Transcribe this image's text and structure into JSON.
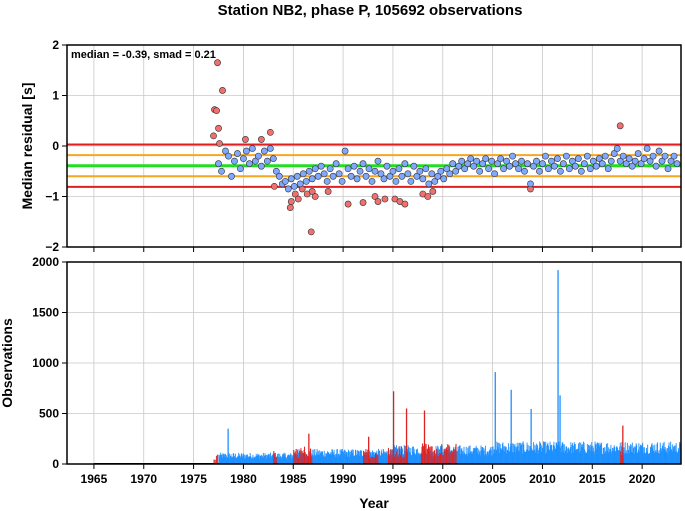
{
  "title": "Station NB2, phase P, 105692 observations",
  "annotation": "median = -0.39, smad = 0.21",
  "colors": {
    "red_line": "#e02020",
    "orange_line": "#f5a623",
    "green_line": "#22dd22",
    "blue_point": "#7fa8ff",
    "red_point": "#f07070",
    "obs_blue": "#1e90ff",
    "obs_red": "#dd2222",
    "grid": "#c8c8c8"
  },
  "chart_data": [
    {
      "type": "scatter",
      "name": "median-residual",
      "ylabel": "Median residual [s]",
      "xlabel": "",
      "xlim": [
        1962.3,
        2023.9
      ],
      "ylim": [
        -2,
        2
      ],
      "yticks": [
        2,
        1,
        0,
        -1,
        -2
      ],
      "xticks": [
        1965,
        1970,
        1975,
        1980,
        1985,
        1990,
        1995,
        2000,
        2005,
        2010,
        2015,
        2020
      ],
      "grid": true,
      "hlines": [
        {
          "y": 0.03,
          "color": "red"
        },
        {
          "y": -0.81,
          "color": "red"
        },
        {
          "y": -0.18,
          "color": "orange"
        },
        {
          "y": -0.6,
          "color": "orange"
        },
        {
          "y": -0.39,
          "color": "green"
        }
      ],
      "median": -0.39,
      "smad": 0.21,
      "series": [
        {
          "color_key": "red_point",
          "points": [
            [
              1977.1,
              0.72
            ],
            [
              1977.3,
              0.7
            ],
            [
              1977.4,
              1.65
            ],
            [
              1977.0,
              0.2
            ],
            [
              1977.5,
              0.35
            ],
            [
              1977.9,
              1.1
            ],
            [
              1977.6,
              0.05
            ],
            [
              1980.2,
              0.13
            ],
            [
              1981.8,
              0.13
            ],
            [
              1982.7,
              0.27
            ],
            [
              1983.1,
              -0.8
            ],
            [
              1984.7,
              -1.22
            ],
            [
              1984.8,
              -1.1
            ],
            [
              1985.2,
              -0.95
            ],
            [
              1985.5,
              -1.05
            ],
            [
              1985.9,
              -0.85
            ],
            [
              1986.4,
              -0.95
            ],
            [
              1986.8,
              -1.7
            ],
            [
              1986.9,
              -0.9
            ],
            [
              1987.2,
              -1.0
            ],
            [
              1988.5,
              -0.9
            ],
            [
              1990.5,
              -1.15
            ],
            [
              1992.0,
              -1.12
            ],
            [
              1993.2,
              -1.0
            ],
            [
              1993.5,
              -1.1
            ],
            [
              1994.2,
              -1.05
            ],
            [
              1995.2,
              -1.05
            ],
            [
              1995.7,
              -1.1
            ],
            [
              1996.2,
              -1.15
            ],
            [
              1998.0,
              -0.95
            ],
            [
              1998.5,
              -1.0
            ],
            [
              1999.0,
              -0.9
            ],
            [
              2008.8,
              -0.85
            ],
            [
              2017.8,
              0.4
            ]
          ]
        },
        {
          "color_key": "blue_point",
          "points": [
            [
              1977.5,
              -0.35
            ],
            [
              1977.8,
              -0.5
            ],
            [
              1978.2,
              -0.1
            ],
            [
              1978.5,
              -0.2
            ],
            [
              1978.8,
              -0.6
            ],
            [
              1979.1,
              -0.3
            ],
            [
              1979.4,
              -0.15
            ],
            [
              1979.7,
              -0.45
            ],
            [
              1980.0,
              -0.25
            ],
            [
              1980.3,
              -0.1
            ],
            [
              1980.6,
              -0.35
            ],
            [
              1980.9,
              -0.05
            ],
            [
              1981.2,
              -0.3
            ],
            [
              1981.5,
              -0.2
            ],
            [
              1981.8,
              -0.4
            ],
            [
              1982.1,
              -0.1
            ],
            [
              1982.4,
              -0.3
            ],
            [
              1982.7,
              -0.05
            ],
            [
              1983.0,
              -0.25
            ],
            [
              1983.3,
              -0.5
            ],
            [
              1983.6,
              -0.6
            ],
            [
              1983.9,
              -0.75
            ],
            [
              1984.2,
              -0.7
            ],
            [
              1984.5,
              -0.85
            ],
            [
              1984.8,
              -0.65
            ],
            [
              1985.1,
              -0.8
            ],
            [
              1985.4,
              -0.6
            ],
            [
              1985.7,
              -0.75
            ],
            [
              1986.0,
              -0.55
            ],
            [
              1986.3,
              -0.7
            ],
            [
              1986.6,
              -0.5
            ],
            [
              1986.9,
              -0.65
            ],
            [
              1987.2,
              -0.45
            ],
            [
              1987.5,
              -0.6
            ],
            [
              1987.8,
              -0.4
            ],
            [
              1988.1,
              -0.55
            ],
            [
              1988.4,
              -0.7
            ],
            [
              1988.7,
              -0.45
            ],
            [
              1989.0,
              -0.6
            ],
            [
              1989.3,
              -0.35
            ],
            [
              1989.6,
              -0.55
            ],
            [
              1989.9,
              -0.7
            ],
            [
              1990.2,
              -0.1
            ],
            [
              1990.5,
              -0.45
            ],
            [
              1990.8,
              -0.6
            ],
            [
              1991.1,
              -0.4
            ],
            [
              1991.4,
              -0.65
            ],
            [
              1991.7,
              -0.5
            ],
            [
              1992.0,
              -0.35
            ],
            [
              1992.3,
              -0.6
            ],
            [
              1992.6,
              -0.45
            ],
            [
              1992.9,
              -0.7
            ],
            [
              1993.2,
              -0.5
            ],
            [
              1993.5,
              -0.3
            ],
            [
              1993.8,
              -0.55
            ],
            [
              1994.1,
              -0.65
            ],
            [
              1994.4,
              -0.4
            ],
            [
              1994.7,
              -0.6
            ],
            [
              1995.0,
              -0.5
            ],
            [
              1995.3,
              -0.7
            ],
            [
              1995.6,
              -0.45
            ],
            [
              1995.9,
              -0.6
            ],
            [
              1996.2,
              -0.35
            ],
            [
              1996.5,
              -0.55
            ],
            [
              1996.8,
              -0.7
            ],
            [
              1997.1,
              -0.4
            ],
            [
              1997.4,
              -0.6
            ],
            [
              1997.7,
              -0.5
            ],
            [
              1998.0,
              -0.65
            ],
            [
              1998.3,
              -0.45
            ],
            [
              1998.6,
              -0.75
            ],
            [
              1998.9,
              -0.55
            ],
            [
              1999.2,
              -0.7
            ],
            [
              1999.5,
              -0.6
            ],
            [
              1999.8,
              -0.5
            ],
            [
              2000.1,
              -0.65
            ],
            [
              2000.4,
              -0.45
            ],
            [
              2000.7,
              -0.55
            ],
            [
              2001.0,
              -0.35
            ],
            [
              2001.3,
              -0.5
            ],
            [
              2001.6,
              -0.4
            ],
            [
              2001.9,
              -0.3
            ],
            [
              2002.2,
              -0.45
            ],
            [
              2002.5,
              -0.35
            ],
            [
              2002.8,
              -0.25
            ],
            [
              2003.1,
              -0.4
            ],
            [
              2003.4,
              -0.3
            ],
            [
              2003.7,
              -0.5
            ],
            [
              2004.0,
              -0.35
            ],
            [
              2004.3,
              -0.25
            ],
            [
              2004.6,
              -0.45
            ],
            [
              2004.9,
              -0.3
            ],
            [
              2005.2,
              -0.55
            ],
            [
              2005.5,
              -0.35
            ],
            [
              2005.8,
              -0.25
            ],
            [
              2006.1,
              -0.45
            ],
            [
              2006.4,
              -0.3
            ],
            [
              2006.7,
              -0.4
            ],
            [
              2007.0,
              -0.2
            ],
            [
              2007.3,
              -0.35
            ],
            [
              2007.6,
              -0.45
            ],
            [
              2007.9,
              -0.3
            ],
            [
              2008.2,
              -0.5
            ],
            [
              2008.5,
              -0.35
            ],
            [
              2008.8,
              -0.75
            ],
            [
              2009.1,
              -0.4
            ],
            [
              2009.4,
              -0.3
            ],
            [
              2009.7,
              -0.5
            ],
            [
              2010.0,
              -0.35
            ],
            [
              2010.3,
              -0.2
            ],
            [
              2010.6,
              -0.45
            ],
            [
              2010.9,
              -0.3
            ],
            [
              2011.2,
              -0.4
            ],
            [
              2011.5,
              -0.25
            ],
            [
              2011.8,
              -0.5
            ],
            [
              2012.1,
              -0.35
            ],
            [
              2012.4,
              -0.2
            ],
            [
              2012.7,
              -0.45
            ],
            [
              2013.0,
              -0.3
            ],
            [
              2013.3,
              -0.4
            ],
            [
              2013.6,
              -0.25
            ],
            [
              2013.9,
              -0.5
            ],
            [
              2014.2,
              -0.35
            ],
            [
              2014.5,
              -0.2
            ],
            [
              2014.8,
              -0.45
            ],
            [
              2015.1,
              -0.3
            ],
            [
              2015.4,
              -0.4
            ],
            [
              2015.7,
              -0.25
            ],
            [
              2016.0,
              -0.35
            ],
            [
              2016.3,
              -0.2
            ],
            [
              2016.6,
              -0.45
            ],
            [
              2016.9,
              -0.3
            ],
            [
              2017.2,
              -0.15
            ],
            [
              2017.5,
              -0.05
            ],
            [
              2017.8,
              -0.3
            ],
            [
              2018.1,
              -0.2
            ],
            [
              2018.4,
              -0.35
            ],
            [
              2018.7,
              -0.25
            ],
            [
              2019.0,
              -0.4
            ],
            [
              2019.3,
              -0.3
            ],
            [
              2019.6,
              -0.15
            ],
            [
              2019.9,
              -0.35
            ],
            [
              2020.2,
              -0.25
            ],
            [
              2020.5,
              -0.05
            ],
            [
              2020.8,
              -0.3
            ],
            [
              2021.1,
              -0.2
            ],
            [
              2021.4,
              -0.4
            ],
            [
              2021.7,
              -0.1
            ],
            [
              2022.0,
              -0.3
            ],
            [
              2022.3,
              -0.2
            ],
            [
              2022.6,
              -0.45
            ],
            [
              2022.9,
              -0.3
            ],
            [
              2023.2,
              -0.2
            ],
            [
              2023.5,
              -0.35
            ]
          ]
        }
      ]
    },
    {
      "type": "bar",
      "name": "observations",
      "ylabel": "Observations",
      "xlabel": "Year",
      "xlim": [
        1962.3,
        2023.9
      ],
      "ylim": [
        0,
        2000
      ],
      "yticks": [
        0,
        500,
        1000,
        1500,
        2000
      ],
      "xticks": [
        1965,
        1970,
        1975,
        1980,
        1985,
        1990,
        1995,
        2000,
        2005,
        2010,
        2015,
        2020
      ],
      "grid": true,
      "baseline_start": 1965.0,
      "blue_start": 1977.5,
      "end": 2023.9,
      "peaks": [
        {
          "x": 2005.2,
          "y": 910,
          "color": "blue"
        },
        {
          "x": 2006.8,
          "y": 735,
          "color": "blue"
        },
        {
          "x": 2008.8,
          "y": 545,
          "color": "blue"
        },
        {
          "x": 2011.5,
          "y": 1920,
          "color": "blue"
        },
        {
          "x": 2011.7,
          "y": 680,
          "color": "blue"
        },
        {
          "x": 1995.0,
          "y": 720,
          "color": "red"
        },
        {
          "x": 1996.3,
          "y": 550,
          "color": "red"
        },
        {
          "x": 1998.1,
          "y": 530,
          "color": "red"
        },
        {
          "x": 1992.5,
          "y": 270,
          "color": "red"
        },
        {
          "x": 1986.5,
          "y": 300,
          "color": "red"
        },
        {
          "x": 1978.4,
          "y": 350,
          "color": "blue"
        },
        {
          "x": 2018.0,
          "y": 380,
          "color": "red"
        }
      ],
      "red_segments": [
        [
          1977.0,
          1977.4,
          80
        ],
        [
          1983.0,
          1983.3,
          120
        ],
        [
          1985.0,
          1986.8,
          150
        ],
        [
          1992.0,
          1993.5,
          130
        ],
        [
          1994.5,
          1996.5,
          160
        ],
        [
          1997.8,
          2001.3,
          170
        ],
        [
          2017.8,
          2018.1,
          120
        ]
      ]
    }
  ]
}
